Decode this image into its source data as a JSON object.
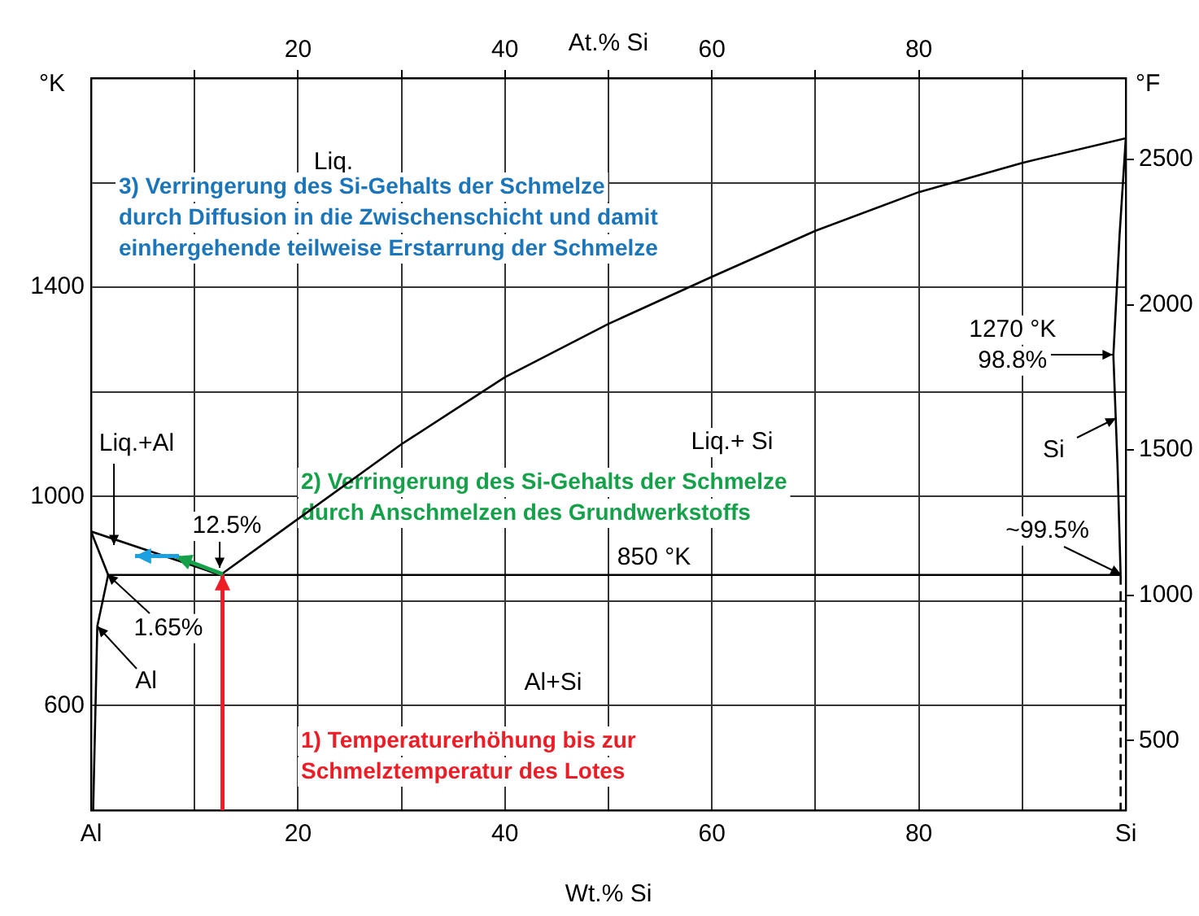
{
  "chart_data": {
    "type": "line",
    "xlabel": "Wt.% Si",
    "x2label": "At.% Si",
    "ylabel": "°K",
    "y2label": "°F",
    "grid": true,
    "legend": false,
    "marker": "none",
    "xlim": [
      0,
      100
    ],
    "xticks": [
      {
        "value": 0,
        "label": "Al"
      },
      {
        "value": 10,
        "label": null
      },
      20,
      {
        "value": 30,
        "label": null
      },
      40,
      {
        "value": 50,
        "label": null
      },
      60,
      {
        "value": 70,
        "label": null
      },
      80,
      {
        "value": 90,
        "label": null
      },
      {
        "value": 100,
        "label": "Si"
      }
    ],
    "x2lim": [
      0,
      100
    ],
    "x2ticks": [
      {
        "value": 10,
        "label": null
      },
      20,
      {
        "value": 30,
        "label": null
      },
      40,
      {
        "value": 50,
        "label": null
      },
      60,
      {
        "value": 70,
        "label": null
      },
      80,
      {
        "value": 90,
        "label": null
      }
    ],
    "ylim": [
      400,
      1800
    ],
    "yticks": [
      {
        "value": 400,
        "label": null
      },
      600,
      {
        "value": 800,
        "label": null
      },
      1000,
      {
        "value": 1200,
        "label": null
      },
      1400,
      {
        "value": 1600,
        "label": null
      },
      {
        "value": 1800,
        "label": null
      }
    ],
    "y2lim": [
      260,
      2780
    ],
    "y2ticks": [
      500,
      1000,
      1500,
      2000,
      2500
    ],
    "series": [
      {
        "color": "#000000",
        "x": [
          0,
          12.5
        ],
        "values": [
          933,
          850
        ]
      },
      {
        "color": "#000000",
        "x": [
          12.5,
          20,
          30,
          40,
          50,
          60,
          70,
          80,
          90,
          100
        ],
        "values": [
          850,
          957,
          1100,
          1228,
          1330,
          1420,
          1508,
          1582,
          1638,
          1685
        ]
      },
      {
        "color": "#000000",
        "x": [
          1.65,
          99.5
        ],
        "values": [
          850,
          850
        ]
      },
      {
        "color": "#000000",
        "x": [
          0,
          1.65
        ],
        "values": [
          933,
          850
        ]
      },
      {
        "color": "#000000",
        "x": [
          1.65,
          0.6,
          0.2
        ],
        "values": [
          850,
          752,
          400
        ]
      },
      {
        "color": "#000000",
        "x": [
          99.5,
          99.2,
          98.8,
          99.4,
          100
        ],
        "values": [
          850,
          1060,
          1270,
          1500,
          1685
        ]
      },
      {
        "color": "#000000",
        "line_style": "dashed",
        "x": [
          99.5,
          99.5
        ],
        "values": [
          850,
          400
        ]
      }
    ],
    "annotations": [
      "Liq.",
      {
        "text": "Liq.+Al",
        "x": 2.2,
        "y": 907
      },
      "Liq.+ Si",
      {
        "text": "12.5%",
        "x": 12.5,
        "y": 865
      },
      {
        "text": "1.65%",
        "x": 1.65,
        "y": 850
      },
      {
        "text": "Al",
        "x": 0.6,
        "y": 752
      },
      "Al+Si",
      "850 °K",
      {
        "text": "1270 °K\n98.8%",
        "x": 98.8,
        "y": 1270
      },
      {
        "text": "Si",
        "x": 99,
        "y": 1150
      },
      {
        "text": "~99.5%",
        "x": 99.5,
        "y": 850
      },
      "3) Verringerung des Si-Gehalts der Schmelze\ndurch Diffusion in die Zwischenschicht und damit\neinhergehende teilweise Erstarrung der Schmelze",
      "2) Verringerung des Si-Gehalts der Schmelze\ndurch Anschmelzen des Grundwerkstoffs",
      "1) Temperaturerhöhung bis zur\nSchmelztemperatur des Lotes"
    ]
  }
}
